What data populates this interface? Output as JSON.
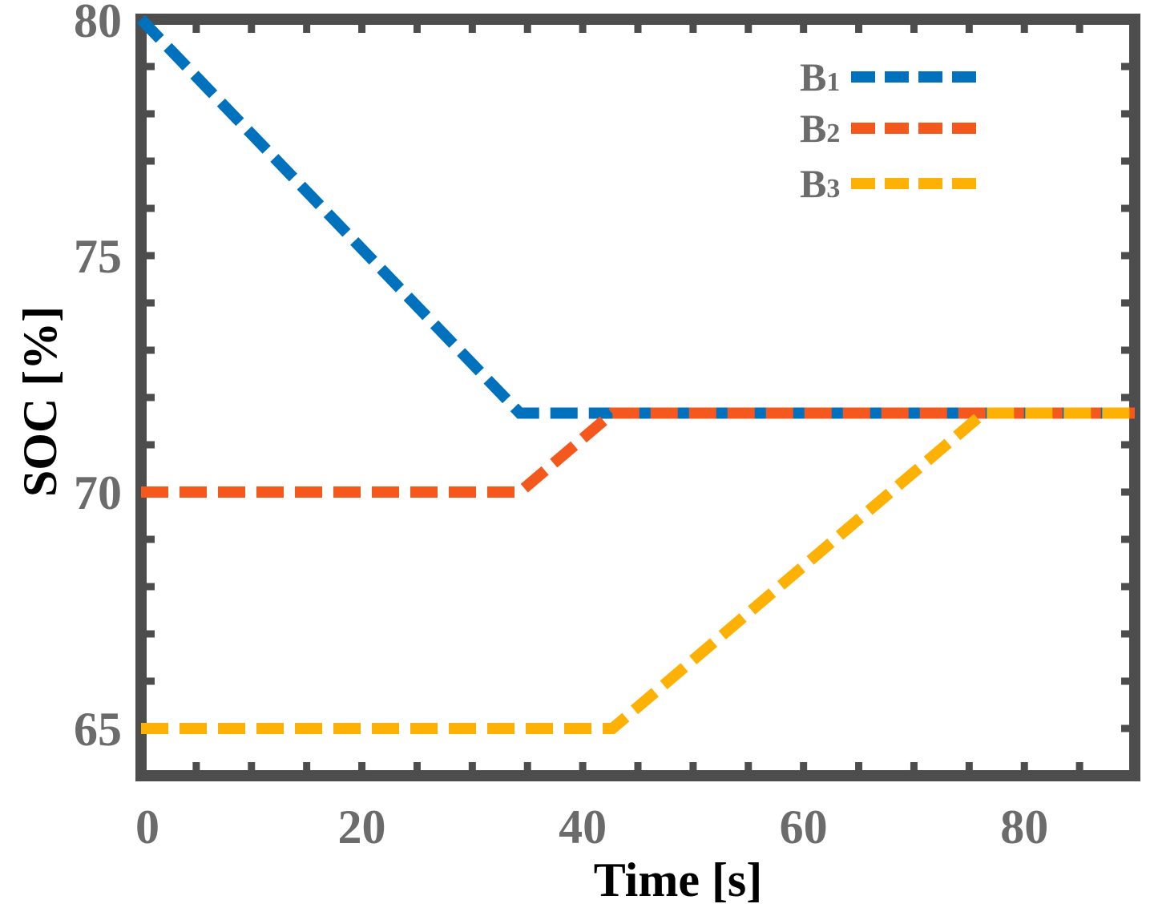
{
  "chart_data": {
    "type": "line",
    "title": "",
    "xlabel": "Time [s]",
    "ylabel": "SOC [%]",
    "xlim": [
      0,
      90
    ],
    "ylim": [
      64,
      80
    ],
    "xticks": [
      0,
      20,
      40,
      60,
      80
    ],
    "xtick_labels": [
      "0",
      "20",
      "40",
      "60",
      "80"
    ],
    "yticks": [
      65,
      70,
      75,
      80
    ],
    "ytick_labels": [
      "65",
      "70",
      "75",
      "80"
    ],
    "x_minor_tick_step": 5,
    "y_minor_tick_step": 1,
    "grid": false,
    "legend_position": "top-right",
    "line_style": "dashed",
    "series": [
      {
        "name": "B1",
        "color": "#0072BD",
        "x": [
          0,
          34.3,
          90
        ],
        "y": [
          80,
          71.67,
          71.67
        ]
      },
      {
        "name": "B2",
        "color": "#F4581C",
        "x": [
          0,
          34.3,
          42.7,
          90
        ],
        "y": [
          70,
          70,
          71.67,
          71.67
        ]
      },
      {
        "name": "B3",
        "color": "#FDB104",
        "x": [
          0,
          42.7,
          76.3,
          90
        ],
        "y": [
          65,
          65,
          71.67,
          71.67
        ]
      }
    ]
  },
  "colors": {
    "frame": "#4d4d4d",
    "tick_label": "#6b6b6b",
    "axis_label": "#000000",
    "background": "#ffffff"
  }
}
